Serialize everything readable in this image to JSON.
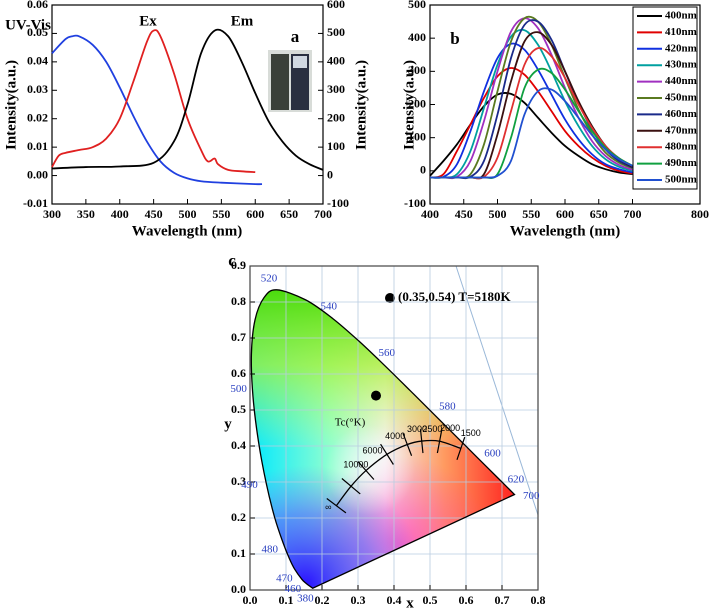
{
  "chart_data": [
    {
      "type": "line",
      "panel_label": "a",
      "xlabel": "Wavelength (nm)",
      "ylabel": "Intensity(a.u.)",
      "y2label": "Intensity(a.u.)",
      "xlim": [
        300,
        700
      ],
      "xticks": [
        300,
        350,
        400,
        450,
        500,
        550,
        600,
        650,
        700
      ],
      "ylim": [
        -0.01,
        0.06
      ],
      "yticks": [
        -0.01,
        {
          "value": 0,
          "label": "0.00"
        },
        0.01,
        0.02,
        0.03,
        0.04,
        0.05,
        0.06
      ],
      "y2lim": [
        -100,
        600
      ],
      "y2ticks": [
        -100,
        0,
        100,
        200,
        300,
        400,
        500,
        600
      ],
      "series": [
        {
          "name": "UV-Vis",
          "color": "#2040e0",
          "x": [
            300,
            320,
            330,
            340,
            360,
            380,
            400,
            420,
            440,
            460,
            480,
            500,
            520,
            550,
            600,
            610
          ],
          "values": [
            0.043,
            0.048,
            0.049,
            0.049,
            0.046,
            0.04,
            0.031,
            0.021,
            0.012,
            0.005,
            0.001,
            -0.001,
            -0.002,
            -0.0025,
            -0.003,
            -0.003
          ]
        },
        {
          "name": "Ex",
          "color": "#e02020",
          "x": [
            300,
            310,
            320,
            340,
            360,
            380,
            400,
            420,
            440,
            450,
            460,
            480,
            500,
            520,
            530,
            540,
            545,
            560,
            580,
            600
          ],
          "values": [
            0.003,
            0.007,
            0.008,
            0.009,
            0.01,
            0.013,
            0.02,
            0.033,
            0.047,
            0.051,
            0.049,
            0.036,
            0.02,
            0.009,
            0.005,
            0.006,
            0.004,
            0.002,
            0.0015,
            0.0012
          ]
        },
        {
          "name": "Em",
          "color": "#000000",
          "axis": "y2",
          "x": [
            300,
            350,
            400,
            450,
            480,
            500,
            520,
            540,
            560,
            580,
            600,
            620,
            640,
            660,
            680,
            700
          ],
          "values": [
            25,
            30,
            32,
            45,
            120,
            250,
            430,
            510,
            490,
            400,
            290,
            190,
            120,
            70,
            40,
            20
          ]
        }
      ]
    },
    {
      "type": "line",
      "panel_label": "b",
      "xlabel": "Wavelength (nm)",
      "ylabel": "Intensity(a.u.)",
      "xlim": [
        400,
        800
      ],
      "xticks": [
        400,
        450,
        500,
        550,
        600,
        650,
        700,
        800
      ],
      "ylim": [
        -100,
        500
      ],
      "yticks": [
        -100,
        0,
        100,
        200,
        300,
        400,
        500
      ],
      "x": [
        400,
        420,
        440,
        460,
        480,
        500,
        520,
        540,
        560,
        580,
        600,
        620,
        640,
        660,
        680,
        700
      ],
      "series": [
        {
          "name": "400nm",
          "color": "#000000",
          "values": [
            -15,
            30,
            80,
            140,
            195,
            230,
            232,
            205,
            160,
            115,
            75,
            45,
            20,
            5,
            -5,
            -10
          ]
        },
        {
          "name": "410nm",
          "color": "#e00000",
          "values": [
            -20,
            -10,
            60,
            140,
            220,
            285,
            310,
            290,
            240,
            180,
            120,
            75,
            40,
            15,
            0,
            -8
          ]
        },
        {
          "name": "420nm",
          "color": "#1030e0",
          "values": [
            -20,
            -18,
            20,
            120,
            240,
            340,
            383,
            365,
            305,
            230,
            155,
            95,
            50,
            20,
            5,
            -5
          ]
        },
        {
          "name": "430nm",
          "color": "#00a0a0",
          "values": [
            -20,
            -20,
            -10,
            60,
            190,
            320,
            405,
            424,
            380,
            300,
            210,
            135,
            75,
            35,
            12,
            0
          ]
        },
        {
          "name": "440nm",
          "color": "#a030c0",
          "values": [
            -20,
            -20,
            -18,
            30,
            150,
            300,
            420,
            460,
            430,
            350,
            250,
            160,
            90,
            45,
            18,
            3
          ]
        },
        {
          "name": "450nm",
          "color": "#5a7a20",
          "values": [
            -20,
            -20,
            -20,
            -10,
            80,
            240,
            390,
            460,
            450,
            380,
            280,
            185,
            110,
            55,
            25,
            8
          ]
        },
        {
          "name": "460nm",
          "color": "#1a2a8a",
          "values": [
            -20,
            -20,
            -20,
            -18,
            30,
            170,
            340,
            440,
            450,
            395,
            300,
            205,
            125,
            65,
            30,
            10
          ]
        },
        {
          "name": "470nm",
          "color": "#3a1010",
          "values": [
            -20,
            -20,
            -20,
            -20,
            -10,
            110,
            270,
            390,
            418,
            380,
            300,
            210,
            135,
            75,
            35,
            12
          ]
        },
        {
          "name": "480nm",
          "color": "#e03030",
          "values": [
            -20,
            -20,
            -20,
            -20,
            -18,
            40,
            180,
            320,
            370,
            345,
            280,
            200,
            130,
            75,
            38,
            15
          ]
        },
        {
          "name": "490nm",
          "color": "#10a040",
          "values": [
            -20,
            -20,
            -20,
            -20,
            -20,
            -10,
            100,
            250,
            305,
            295,
            245,
            180,
            120,
            70,
            38,
            15
          ]
        },
        {
          "name": "500nm",
          "color": "#2050d0",
          "values": [
            -20,
            -20,
            -20,
            -20,
            -20,
            -15,
            30,
            170,
            240,
            245,
            210,
            160,
            108,
            65,
            35,
            15
          ]
        }
      ]
    },
    {
      "type": "scatter",
      "panel_label": "c",
      "xlabel": "x",
      "ylabel": "y",
      "annotation": "(0.35,0.54) T=5180K",
      "color": "#000000",
      "xlim": [
        0,
        0.8
      ],
      "xticks": [
        {
          "value": 0,
          "label": "0.0"
        },
        0.1,
        0.2,
        0.3,
        0.4,
        0.5,
        0.6,
        0.7,
        0.8
      ],
      "ylim": [
        0,
        0.9
      ],
      "yticks": [
        {
          "value": 0,
          "label": "0.0"
        },
        0.1,
        0.2,
        0.3,
        0.4,
        0.5,
        0.6,
        0.7,
        0.8,
        0.9
      ],
      "grid": true,
      "x": [
        0.35
      ],
      "values": [
        0.54
      ],
      "locus": {
        "labels": [
          "380",
          null,
          "460",
          "470",
          null,
          "480",
          null,
          "490",
          null,
          "500",
          null,
          null,
          null,
          "520",
          null,
          "540",
          null,
          "560",
          null,
          "580",
          null,
          "600",
          "620",
          null,
          "700"
        ],
        "x": [
          0.1741,
          0.1566,
          0.144,
          0.1241,
          0.1096,
          0.0913,
          0.0687,
          0.0454,
          0.0235,
          0.0082,
          0.0039,
          0.0139,
          0.0389,
          0.0743,
          0.1547,
          0.2296,
          0.3016,
          0.3731,
          0.4441,
          0.5125,
          0.5752,
          0.627,
          0.6915,
          0.719,
          0.7347
        ],
        "y": [
          0.005,
          0.0177,
          0.0297,
          0.0578,
          0.0868,
          0.1327,
          0.2007,
          0.295,
          0.4127,
          0.5384,
          0.6548,
          0.7502,
          0.812,
          0.8338,
          0.8059,
          0.7543,
          0.6923,
          0.6245,
          0.5547,
          0.4866,
          0.4242,
          0.3725,
          0.3083,
          0.2809,
          0.2653
        ]
      },
      "planckian": {
        "title": "Tc(°K)",
        "labels": [
          "∞",
          "10000",
          "6000",
          "4000",
          "3000",
          "2500",
          "2000",
          "1500"
        ],
        "x": [
          0.2399,
          0.2807,
          0.3221,
          0.3805,
          0.4369,
          0.477,
          0.5267,
          0.5857
        ],
        "y": [
          0.2342,
          0.2883,
          0.3318,
          0.3768,
          0.4041,
          0.4137,
          0.4133,
          0.3931
        ]
      }
    }
  ]
}
